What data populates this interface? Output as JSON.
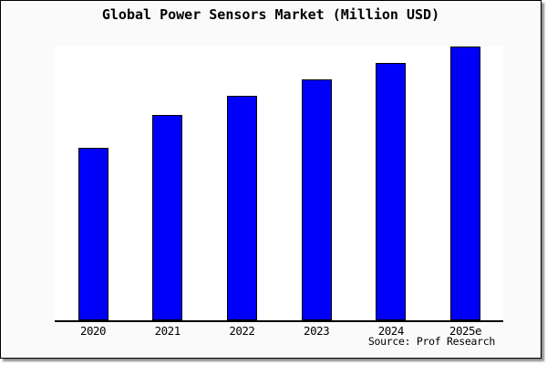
{
  "figure": {
    "background_color": "#fafafa",
    "plot_background_color": "#ffffff",
    "border_color": "#000000",
    "axis_color": "#000000",
    "text_color": "#000000"
  },
  "chart_data": {
    "type": "bar",
    "title": "Global Power Sensors Market (Million USD)",
    "categories": [
      "2020",
      "2021",
      "2022",
      "2023",
      "2024",
      "2025e"
    ],
    "values": [
      63,
      75,
      82,
      88,
      94,
      100
    ],
    "xlabel": "",
    "ylabel": "",
    "ylim": [
      0,
      100
    ],
    "grid": false,
    "legend": false,
    "y_axis_tick_labels_visible": false,
    "note": "Y-axis has no tick labels; values are relative bar heights indexed to 2025e = 100",
    "bar_color": "#0000fa",
    "bar_border_color": "#000000"
  },
  "source": {
    "label": "Source: Prof Research"
  }
}
